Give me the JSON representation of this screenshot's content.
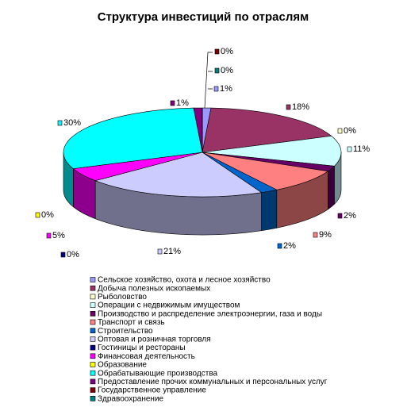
{
  "chart_data": {
    "type": "pie",
    "title": "Структура инвестиций по отраслям",
    "categories": [
      "Сельское хозяйство, охота и лесное хозяйство",
      "Добыча полезных ископаемых",
      "Рыболовство",
      "Операции с недвижимым имуществом",
      "Производство и распределение электроэнергии, газа и воды",
      "Транспорт и связь",
      "Строительство",
      "Оптовая и розничная торговля",
      "Гостиницы и рестораны",
      "Финансовая деятельность",
      "Образование",
      "Обрабатывающие производства",
      "Предоставление прочих коммунальных и персональных услуг",
      "Государственное управление",
      "Здравоохранение"
    ],
    "values": [
      1,
      18,
      0,
      11,
      2,
      9,
      2,
      21,
      0,
      5,
      0,
      30,
      1,
      0,
      0
    ],
    "value_labels": [
      "1%",
      "18%",
      "0%",
      "11%",
      "2%",
      "9%",
      "2%",
      "21%",
      "0%",
      "5%",
      "0%",
      "30%",
      "1%",
      "0%",
      "0%"
    ],
    "colors": [
      "#9999ff",
      "#993366",
      "#ffffcc",
      "#ccffff",
      "#660066",
      "#ff8080",
      "#0066cc",
      "#ccccff",
      "#000080",
      "#ff00ff",
      "#ffff00",
      "#00ffff",
      "#800080",
      "#800000",
      "#008080"
    ]
  }
}
